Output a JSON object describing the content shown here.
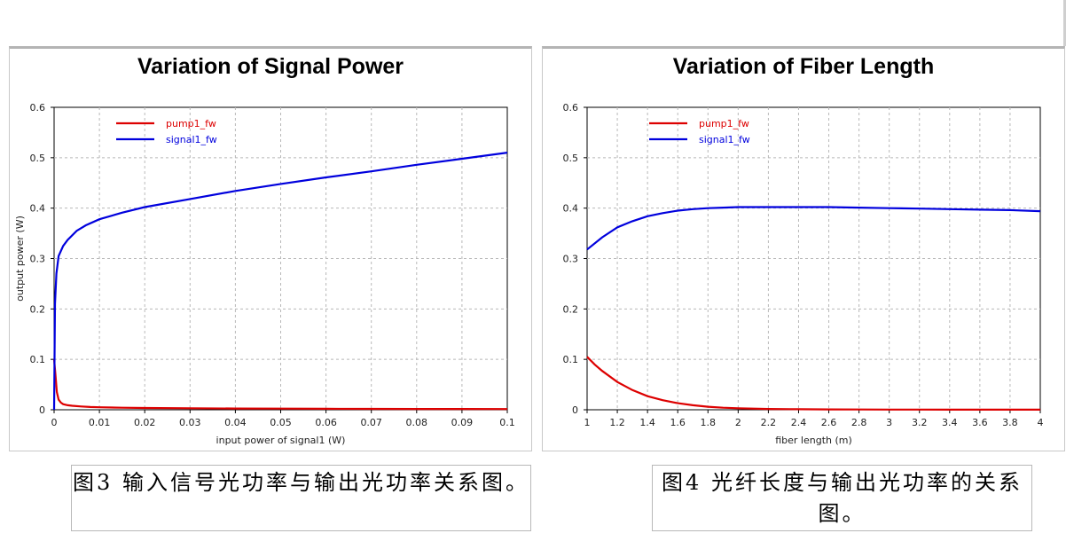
{
  "chart_data": [
    {
      "type": "line",
      "title": "Variation of Signal Power",
      "xlabel": "input power of signal1 (W)",
      "ylabel": "output power (W)",
      "xlim": [
        0,
        0.1
      ],
      "ylim": [
        0,
        0.6
      ],
      "xticks": [
        "0",
        "0.01",
        "0.02",
        "0.03",
        "0.04",
        "0.05",
        "0.06",
        "0.07",
        "0.08",
        "0.09",
        "0.1"
      ],
      "yticks": [
        "0",
        "0.1",
        "0.2",
        "0.3",
        "0.4",
        "0.5",
        "0.6"
      ],
      "grid": true,
      "legend_position": "top-left",
      "series": [
        {
          "name": "pump1_fw",
          "color": "#dd0000",
          "x": [
            0,
            0.0003,
            0.0006,
            0.001,
            0.0015,
            0.002,
            0.003,
            0.004,
            0.006,
            0.008,
            0.01,
            0.015,
            0.02,
            0.03,
            0.04,
            0.05,
            0.06,
            0.07,
            0.08,
            0.09,
            0.1
          ],
          "y": [
            0.1,
            0.07,
            0.035,
            0.02,
            0.014,
            0.011,
            0.009,
            0.008,
            0.0065,
            0.0055,
            0.005,
            0.004,
            0.0035,
            0.003,
            0.0025,
            0.0022,
            0.002,
            0.0018,
            0.0016,
            0.0015,
            0.0014
          ]
        },
        {
          "name": "signal1_fw",
          "color": "#0000dd",
          "x": [
            0,
            0.0002,
            0.0005,
            0.001,
            0.002,
            0.003,
            0.005,
            0.007,
            0.01,
            0.015,
            0.02,
            0.03,
            0.04,
            0.05,
            0.06,
            0.07,
            0.08,
            0.09,
            0.1
          ],
          "y": [
            0.0,
            0.21,
            0.27,
            0.305,
            0.325,
            0.337,
            0.355,
            0.366,
            0.378,
            0.391,
            0.402,
            0.418,
            0.434,
            0.448,
            0.461,
            0.473,
            0.486,
            0.498,
            0.51
          ]
        }
      ]
    },
    {
      "type": "line",
      "title": "Variation of Fiber Length",
      "xlabel": "fiber length (m)",
      "ylabel": "",
      "xlim": [
        1,
        4
      ],
      "ylim": [
        0,
        0.6
      ],
      "xticks": [
        "1",
        "1.2",
        "1.4",
        "1.6",
        "1.8",
        "2",
        "2.2",
        "2.4",
        "2.6",
        "2.8",
        "3",
        "3.2",
        "3.4",
        "3.6",
        "3.8",
        "4"
      ],
      "yticks": [
        "0",
        "0.1",
        "0.2",
        "0.3",
        "0.4",
        "0.5",
        "0.6"
      ],
      "grid": true,
      "legend_position": "top-left",
      "series": [
        {
          "name": "pump1_fw",
          "color": "#dd0000",
          "x": [
            1.0,
            1.05,
            1.1,
            1.2,
            1.3,
            1.4,
            1.5,
            1.6,
            1.7,
            1.8,
            1.9,
            2.0,
            2.2,
            2.4,
            2.6,
            2.8,
            3.0,
            3.2,
            3.4,
            3.6,
            3.8,
            4.0
          ],
          "y": [
            0.105,
            0.09,
            0.077,
            0.055,
            0.039,
            0.027,
            0.019,
            0.013,
            0.009,
            0.006,
            0.004,
            0.003,
            0.0015,
            0.001,
            0.0007,
            0.0005,
            0.0004,
            0.0003,
            0.0002,
            0.0002,
            0.0001,
            0.0001
          ]
        },
        {
          "name": "signal1_fw",
          "color": "#0000dd",
          "x": [
            1.0,
            1.1,
            1.2,
            1.3,
            1.4,
            1.5,
            1.6,
            1.7,
            1.8,
            1.9,
            2.0,
            2.2,
            2.4,
            2.6,
            2.8,
            3.0,
            3.2,
            3.4,
            3.6,
            3.8,
            4.0
          ],
          "y": [
            0.318,
            0.342,
            0.362,
            0.374,
            0.384,
            0.39,
            0.395,
            0.398,
            0.4,
            0.401,
            0.402,
            0.402,
            0.402,
            0.402,
            0.401,
            0.4,
            0.399,
            0.398,
            0.397,
            0.396,
            0.394
          ]
        }
      ]
    }
  ],
  "captions": {
    "fig3": "图3 输入信号光功率与输出光功率关系图。",
    "fig4": "图4 光纤长度与输出光功率的关系图。"
  }
}
